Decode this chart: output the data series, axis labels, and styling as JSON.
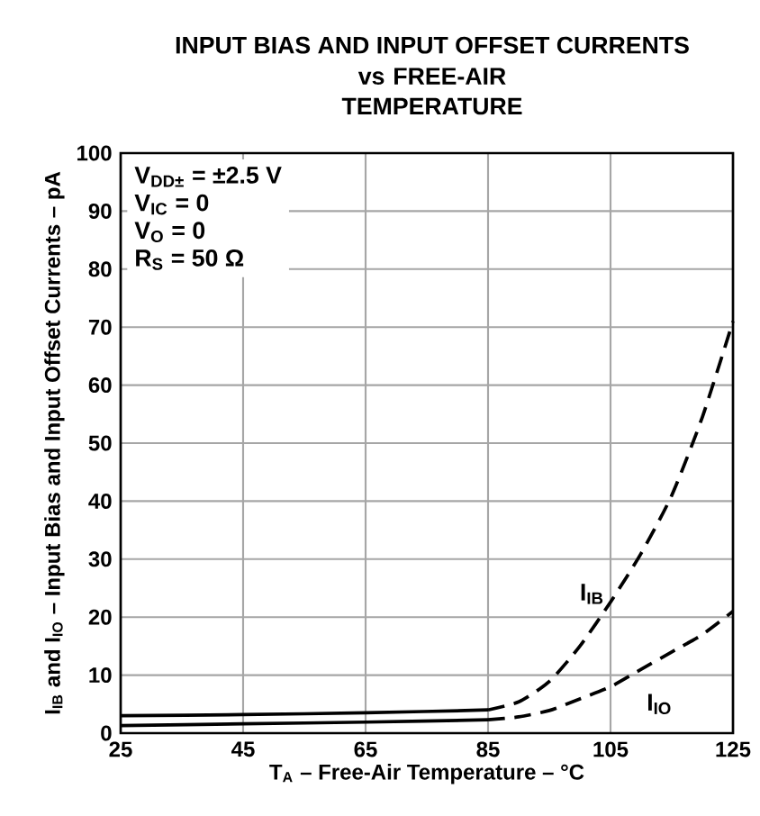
{
  "chart_data": {
    "type": "line",
    "title": "INPUT BIAS AND INPUT OFFSET CURRENTS",
    "subtitle": "vs FREE-AIR TEMPERATURE",
    "xlabel": "T$_{A}$ – Free-Air Temperature – °C",
    "ylabel": "I$_{IB}$ and I$_{IO}$ – Input Bias and Input Offset Currents – pA",
    "xlim": [
      25,
      125
    ],
    "ylim": [
      0,
      100
    ],
    "xticks": [
      25,
      45,
      65,
      85,
      105,
      125
    ],
    "yticks": [
      0,
      10,
      20,
      30,
      40,
      50,
      60,
      70,
      80,
      90,
      100
    ],
    "grid": true,
    "series": [
      {
        "color": "#000000",
        "line_style": "solid",
        "x": [
          25,
          45,
          65,
          85
        ],
        "values": [
          3.0,
          3.2,
          3.5,
          4.0
        ]
      },
      {
        "color": "#000000",
        "line_style": "dashed",
        "x": [
          85,
          90,
          95,
          100,
          105,
          110,
          115,
          120,
          125
        ],
        "values": [
          4.0,
          5.4,
          8.9,
          15,
          22.6,
          31,
          41,
          54.5,
          71
        ]
      },
      {
        "color": "#000000",
        "line_style": "solid",
        "x": [
          25,
          45,
          65,
          85
        ],
        "values": [
          1.3,
          1.6,
          1.9,
          2.3
        ]
      },
      {
        "color": "#000000",
        "line_style": "dashed",
        "x": [
          85,
          90,
          95,
          100,
          105,
          110,
          115,
          120,
          125
        ],
        "values": [
          2.3,
          2.8,
          3.9,
          5.9,
          8,
          11,
          14,
          17,
          21
        ]
      }
    ],
    "annotations": [
      "V$_{DD±}$ = ±2.5 V",
      "V$_{IC}$ = 0",
      "V$_{O}$ = 0",
      "R$_{S}$ = 50 Ω",
      "I$_{IB}$",
      "I$_{IO}$"
    ]
  }
}
